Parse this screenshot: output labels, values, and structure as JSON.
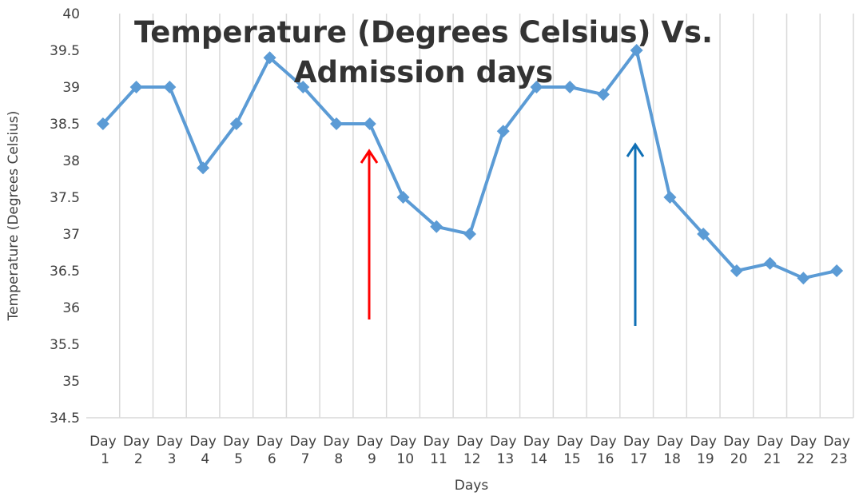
{
  "chart_data": {
    "type": "line",
    "title": "Temperature (Degrees Celsius) Vs. Admission days",
    "x_label": "Days",
    "y_label": "Temperature (Degrees Celsius)",
    "categories": [
      "Day 1",
      "Day 2",
      "Day 3",
      "Day 4",
      "Day 5",
      "Day 6",
      "Day 7",
      "Day 8",
      "Day 9",
      "Day 10",
      "Day 11",
      "Day 12",
      "Day 13",
      "Day 14",
      "Day 15",
      "Day 16",
      "Day 17",
      "Day 18",
      "Day 19",
      "Day 20",
      "Day 21",
      "Day 22",
      "Day 23"
    ],
    "values": [
      38.5,
      39,
      39,
      37.9,
      38.5,
      39.4,
      39,
      38.5,
      38.5,
      37.5,
      37.1,
      37,
      38.4,
      39,
      39,
      38.9,
      39.5,
      37.5,
      37,
      36.5,
      36.6,
      36.4,
      36.5
    ],
    "color": "#5b9bd5",
    "ylim": [
      34.5,
      40
    ],
    "yticks": [
      34.5,
      35,
      35.5,
      36,
      36.5,
      37,
      37.5,
      38,
      38.5,
      39,
      39.5,
      40
    ]
  }
}
